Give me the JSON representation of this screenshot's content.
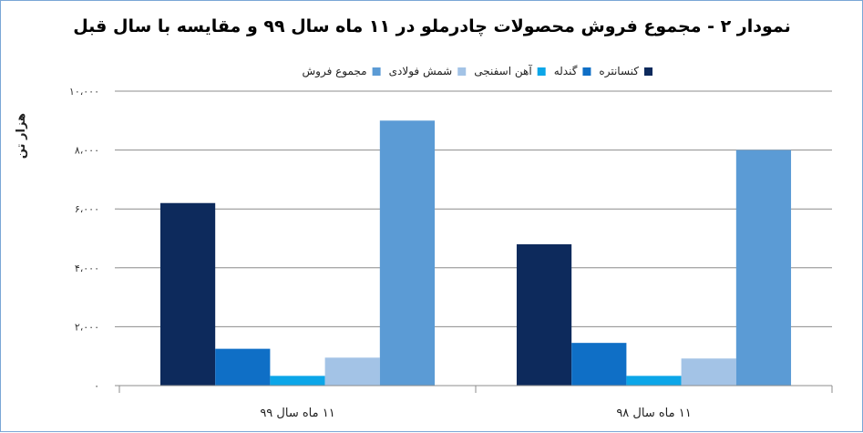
{
  "chart_data": {
    "type": "bar",
    "title": "نمودار ۲ - مجموع فروش محصولات چادرملو در ۱۱ ماه سال ۹۹ و مقایسه با سال قبل",
    "ylabel": "هزار تن",
    "xlabel": "",
    "categories": [
      "۱۱ ماه سال ۹۹",
      "۱۱ ماه سال ۹۸"
    ],
    "series": [
      {
        "name": "کنسانتره",
        "color": "#0d2a5c",
        "values": [
          6200,
          4800
        ]
      },
      {
        "name": "گندله",
        "color": "#0f6fc6",
        "values": [
          1250,
          1450
        ]
      },
      {
        "name": "آهن اسفنجی",
        "color": "#0ca6e8",
        "values": [
          330,
          330
        ]
      },
      {
        "name": "شمش فولادی",
        "color": "#a3c3e6",
        "values": [
          950,
          920
        ]
      },
      {
        "name": "مجموع فروش",
        "color": "#5b9bd5",
        "values": [
          9000,
          8000
        ]
      }
    ],
    "ylim": [
      0,
      10000
    ],
    "yticks": [
      0,
      2000,
      4000,
      6000,
      8000,
      10000
    ],
    "ytick_labels": [
      "۰",
      "۲،۰۰۰",
      "۴،۰۰۰",
      "۶،۰۰۰",
      "۸،۰۰۰",
      "۱۰،۰۰۰"
    ],
    "grid": true,
    "legend_position": "top"
  }
}
